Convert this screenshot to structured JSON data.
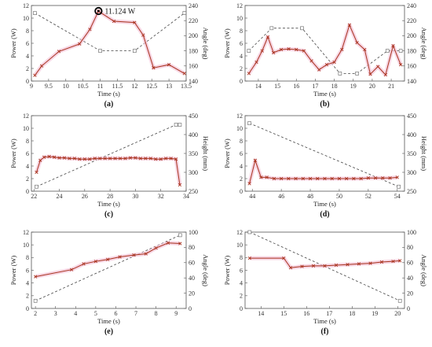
{
  "chart_data": [
    {
      "type": "line",
      "panel_label": "(a)",
      "xlabel": "Time (s)",
      "ylabel": "Power (W)",
      "y2label": "Angle (deg)",
      "xlim": [
        9,
        13.5
      ],
      "ylim": [
        0,
        12
      ],
      "y2lim": [
        140,
        240
      ],
      "xticks": [
        9,
        9.5,
        10,
        10.5,
        11,
        11.5,
        12,
        12.5,
        13,
        13.5
      ],
      "xticklabels": [
        "9",
        "9.5",
        "10",
        "10.5",
        "11",
        "11.5",
        "12",
        "12.5",
        "13",
        "13.5"
      ],
      "yticks": [
        0,
        2,
        4,
        6,
        8,
        10,
        12
      ],
      "y2ticks": [
        140,
        160,
        180,
        200,
        220,
        240
      ],
      "power": {
        "x": [
          9.1,
          9.3,
          9.8,
          10.4,
          10.7,
          10.95,
          11.4,
          12.0,
          12.25,
          12.55,
          13.0,
          13.45
        ],
        "y": [
          0.9,
          2.4,
          4.7,
          5.9,
          8.2,
          11.1,
          9.5,
          9.3,
          7.3,
          2.1,
          2.6,
          1.2
        ]
      },
      "angle": {
        "x": [
          9.1,
          11.0,
          12.0,
          13.45
        ],
        "y": [
          230,
          180,
          180,
          230
        ]
      },
      "annotation": {
        "text": "11.124 W",
        "x": 10.95,
        "y": 11.124
      }
    },
    {
      "type": "line",
      "panel_label": "(b)",
      "xlabel": "Time (s)",
      "ylabel": "Power (W)",
      "y2label": "Angle (deg)",
      "xlim": [
        13.3,
        21.7
      ],
      "ylim": [
        0,
        12
      ],
      "y2lim": [
        140,
        240
      ],
      "xticks": [
        14,
        15,
        16,
        17,
        18,
        19,
        20,
        21
      ],
      "xticklabels": [
        "14",
        "15",
        "16",
        "17",
        "18",
        "19",
        "20",
        "21"
      ],
      "yticks": [
        0,
        2,
        4,
        6,
        8,
        10,
        12
      ],
      "y2ticks": [
        140,
        160,
        180,
        200,
        220,
        240
      ],
      "power": {
        "x": [
          13.5,
          13.9,
          14.2,
          14.5,
          14.8,
          15.2,
          15.6,
          16.0,
          16.4,
          16.8,
          17.2,
          17.6,
          18.0,
          18.4,
          18.8,
          19.2,
          19.6,
          19.9,
          20.3,
          20.7,
          21.1,
          21.5
        ],
        "y": [
          1.2,
          3.0,
          4.8,
          7.0,
          4.5,
          5.0,
          5.1,
          5.0,
          4.8,
          3.2,
          1.8,
          2.6,
          3.0,
          5.0,
          8.9,
          6.1,
          5.0,
          1.1,
          2.3,
          1.0,
          5.6,
          2.6
        ]
      },
      "angle": {
        "x": [
          13.5,
          14.7,
          16.3,
          18.3,
          19.2,
          20.8,
          21.5
        ],
        "y": [
          180,
          210,
          210,
          150,
          150,
          180,
          180
        ]
      }
    },
    {
      "type": "line",
      "panel_label": "(c)",
      "xlabel": "Time (s)",
      "ylabel": "Power (W)",
      "y2label": "Height (mm)",
      "xlim": [
        21.8,
        34
      ],
      "ylim": [
        0,
        12
      ],
      "y2lim": [
        250,
        450
      ],
      "xticks": [
        22,
        24,
        26,
        28,
        30,
        32,
        34
      ],
      "xticklabels": [
        "22",
        "24",
        "26",
        "28",
        "30",
        "32",
        "34"
      ],
      "yticks": [
        0,
        2,
        4,
        6,
        8,
        10,
        12
      ],
      "y2ticks": [
        250,
        300,
        350,
        400,
        450
      ],
      "power": {
        "x": [
          22.2,
          22.5,
          22.8,
          23.2,
          23.6,
          24.0,
          24.4,
          24.8,
          25.2,
          25.6,
          26.0,
          26.4,
          26.8,
          27.2,
          27.6,
          28.0,
          28.4,
          28.8,
          29.2,
          29.6,
          30.0,
          30.4,
          30.8,
          31.2,
          31.6,
          32.0,
          32.4,
          32.8,
          33.2,
          33.5
        ],
        "y": [
          3.0,
          4.9,
          5.4,
          5.5,
          5.4,
          5.3,
          5.3,
          5.2,
          5.2,
          5.1,
          5.1,
          5.1,
          5.2,
          5.2,
          5.2,
          5.2,
          5.2,
          5.2,
          5.2,
          5.3,
          5.3,
          5.2,
          5.2,
          5.2,
          5.1,
          5.1,
          5.2,
          5.2,
          5.1,
          1.0
        ]
      },
      "height": {
        "x": [
          22.2,
          33.2,
          33.5
        ],
        "y": [
          262,
          426,
          426
        ]
      }
    },
    {
      "type": "line",
      "panel_label": "(d)",
      "xlabel": "Time (s)",
      "ylabel": "Power (W)",
      "y2label": "Height (mm)",
      "xlim": [
        43.5,
        54.5
      ],
      "ylim": [
        0,
        12
      ],
      "y2lim": [
        250,
        450
      ],
      "xticks": [
        44,
        46,
        48,
        50,
        52,
        54
      ],
      "xticklabels": [
        "44",
        "46",
        "48",
        "50",
        "52",
        "54"
      ],
      "yticks": [
        0,
        2,
        4,
        6,
        8,
        10,
        12
      ],
      "y2ticks": [
        250,
        300,
        350,
        400,
        450
      ],
      "power": {
        "x": [
          43.8,
          44.2,
          44.6,
          45.0,
          45.5,
          46.0,
          46.5,
          47.0,
          47.5,
          48.0,
          48.5,
          49.0,
          49.5,
          50.0,
          50.5,
          51.0,
          51.5,
          52.0,
          52.5,
          53.0,
          53.5,
          54.0
        ],
        "y": [
          1.2,
          4.9,
          2.2,
          2.2,
          2.0,
          2.0,
          2.0,
          2.0,
          2.0,
          2.0,
          2.0,
          2.0,
          2.0,
          2.0,
          2.0,
          2.0,
          2.0,
          2.1,
          2.1,
          2.1,
          2.1,
          2.2
        ]
      },
      "height": {
        "x": [
          43.8,
          54.1
        ],
        "y": [
          430,
          262
        ]
      }
    },
    {
      "type": "line",
      "panel_label": "(e)",
      "xlabel": "Time (s)",
      "ylabel": "Power (W)",
      "y2label": "Angle (deg)",
      "xlim": [
        1.8,
        9.5
      ],
      "ylim": [
        0,
        12
      ],
      "y2lim": [
        0,
        100
      ],
      "xticks": [
        2,
        3,
        4,
        5,
        6,
        7,
        8,
        9
      ],
      "xticklabels": [
        "2",
        "3",
        "4",
        "5",
        "6",
        "7",
        "8",
        "9"
      ],
      "yticks": [
        0,
        2,
        4,
        6,
        8,
        10,
        12
      ],
      "y2ticks": [
        0,
        20,
        40,
        60,
        80,
        100
      ],
      "power": {
        "x": [
          2.0,
          3.8,
          4.4,
          5.0,
          5.6,
          6.2,
          6.9,
          7.5,
          8.0,
          8.6,
          9.2
        ],
        "y": [
          5.0,
          6.1,
          7.0,
          7.4,
          7.7,
          8.1,
          8.4,
          8.6,
          9.5,
          10.3,
          10.2
        ]
      },
      "angle": {
        "x": [
          2.0,
          9.2
        ],
        "y": [
          10,
          96
        ]
      }
    },
    {
      "type": "line",
      "panel_label": "(f)",
      "xlabel": "Time (s)",
      "ylabel": "Power (W)",
      "y2label": "Angle (deg)",
      "xlim": [
        13.3,
        20.3
      ],
      "ylim": [
        0,
        12
      ],
      "y2lim": [
        0,
        100
      ],
      "xticks": [
        14,
        15,
        16,
        17,
        18,
        19,
        20
      ],
      "xticklabels": [
        "14",
        "15",
        "16",
        "17",
        "18",
        "19",
        "20"
      ],
      "yticks": [
        0,
        2,
        4,
        6,
        8,
        10,
        12
      ],
      "y2ticks": [
        0,
        20,
        40,
        60,
        80,
        100
      ],
      "power": {
        "x": [
          13.5,
          15.0,
          15.3,
          15.8,
          16.3,
          16.8,
          17.3,
          17.8,
          18.3,
          18.8,
          19.3,
          19.8,
          20.1
        ],
        "y": [
          7.9,
          7.9,
          6.4,
          6.6,
          6.7,
          6.7,
          6.8,
          6.9,
          7.0,
          7.1,
          7.3,
          7.4,
          7.5
        ]
      },
      "angle": {
        "x": [
          13.5,
          20.1
        ],
        "y": [
          100,
          10
        ]
      }
    }
  ]
}
